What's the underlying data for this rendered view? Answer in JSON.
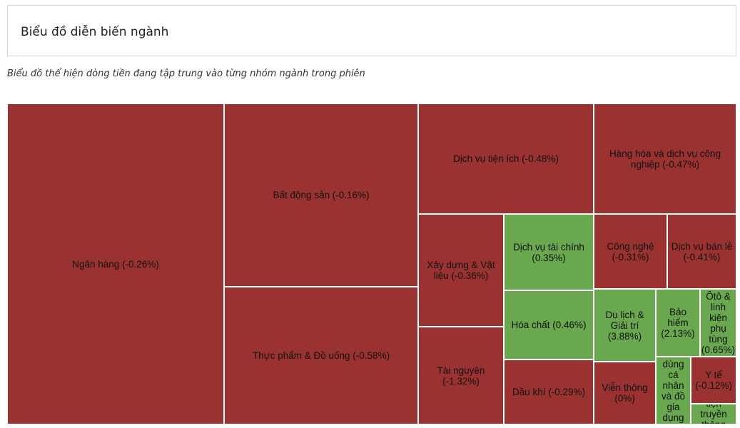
{
  "header": {
    "title": "Biểu đồ diễn biến ngành",
    "subtitle": "Biểu đồ thể hiện dòng tiền đang tập trung vào từng nhóm ngành trong phiên"
  },
  "colors": {
    "negative": "#9b3232",
    "positive": "#6aa84f"
  },
  "chart_data": {
    "type": "treemap",
    "title": "",
    "items": [
      {
        "name": "Ngân hàng",
        "change_pct": -0.26,
        "label": "Ngân hàng (-0.26%)"
      },
      {
        "name": "Bất động sản",
        "change_pct": -0.16,
        "label": "Bất động sản (-0.16%)"
      },
      {
        "name": "Thực phẩm & Đồ uống",
        "change_pct": -0.58,
        "label": "Thực phẩm & Đồ uống (-0.58%)"
      },
      {
        "name": "Dịch vụ tiện ích",
        "change_pct": -0.48,
        "label": "Dịch vụ tiện ích (-0.48%)"
      },
      {
        "name": "Hàng hóa và dịch vụ công nghiệp",
        "change_pct": -0.47,
        "label": "Hàng hóa và dịch vụ công nghiệp (-0.47%)"
      },
      {
        "name": "Xây dựng & Vật liệu",
        "change_pct": -0.36,
        "label": "Xây dựng & Vật liệu (-0.36%)"
      },
      {
        "name": "Dịch vụ tài chính",
        "change_pct": 0.35,
        "label": "Dịch vụ tài chính (0.35%)"
      },
      {
        "name": "Công nghệ",
        "change_pct": -0.31,
        "label": "Công nghệ (-0.31%)"
      },
      {
        "name": "Dịch vụ bán lẻ",
        "change_pct": -0.41,
        "label": "Dịch vụ bán lẻ (-0.41%)"
      },
      {
        "name": "Hóa chất",
        "change_pct": 0.46,
        "label": "Hóa chất (0.46%)"
      },
      {
        "name": "Du lịch & Giải trí",
        "change_pct": 3.88,
        "label": "Du lịch & Giải trí (3.88%)"
      },
      {
        "name": "Bảo hiểm",
        "change_pct": 2.13,
        "label": "Bảo hiểm (2.13%)"
      },
      {
        "name": "Ôtô & linh kiện phụ tùng",
        "change_pct": 0.65,
        "label": "Ôtô & linh kiện phụ tùng (0.65%)"
      },
      {
        "name": "Tài nguyên",
        "change_pct": -1.32,
        "label": "Tài nguyên (-1.32%)"
      },
      {
        "name": "Dầu khí",
        "change_pct": -0.29,
        "label": "Dầu khí (-0.29%)"
      },
      {
        "name": "Viễn thông",
        "change_pct": 0,
        "label": "Viễn thông (0%)"
      },
      {
        "name": "Hàng cá nhân và đồ gia dụng",
        "change_pct": null,
        "label": "dùng cá nhân và đồ gia dụng"
      },
      {
        "name": "Y tế",
        "change_pct": -0.12,
        "label": "Y tế (-0.12%)"
      },
      {
        "name": "Truyền thông",
        "change_pct": null,
        "label": "tiện truyền thông"
      }
    ]
  }
}
